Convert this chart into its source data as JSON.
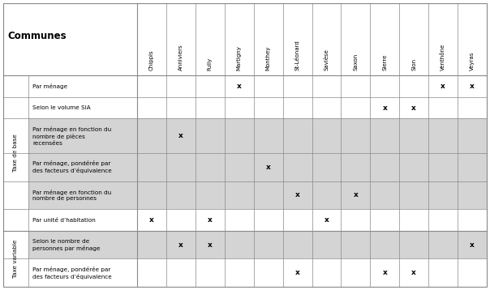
{
  "communes": [
    "Chippis",
    "Anniviers",
    "Fully",
    "Martigny",
    "Monthey",
    "St-Léonard",
    "Savièse",
    "Saxon",
    "Sierre",
    "Sion",
    "Venthône",
    "Veyras"
  ],
  "rows": [
    {
      "group": "Taxe de base",
      "label": "Par ménage",
      "label2": ""
    },
    {
      "group": "Taxe de base",
      "label": "Selon le volume SIA",
      "label2": ""
    },
    {
      "group": "Taxe de base",
      "label": "Par ménage en fonction du",
      "label2": "nombre de pièces\nrecensées"
    },
    {
      "group": "Taxe de base",
      "label": "Par ménage, pondérée par",
      "label2": "des facteurs d’équivalence"
    },
    {
      "group": "Taxe de base",
      "label": "Par ménage en fonction du",
      "label2": "nombre de personnes"
    },
    {
      "group": "Taxe de base",
      "label": "Par unité d’habitation",
      "label2": ""
    },
    {
      "group": "Taxe variable",
      "label": "Selon le nombre de",
      "label2": "personnes par ménage"
    },
    {
      "group": "Taxe variable",
      "label": "Par ménage, pondérée par",
      "label2": "des facteurs d’équivalence"
    }
  ],
  "marks": [
    [
      0,
      0,
      0,
      1,
      0,
      0,
      0,
      0,
      0,
      0,
      1,
      1
    ],
    [
      0,
      0,
      0,
      0,
      0,
      0,
      0,
      0,
      1,
      1,
      0,
      0
    ],
    [
      0,
      1,
      0,
      0,
      0,
      0,
      0,
      0,
      0,
      0,
      0,
      0
    ],
    [
      0,
      0,
      0,
      0,
      1,
      0,
      0,
      0,
      0,
      0,
      0,
      0
    ],
    [
      0,
      0,
      0,
      0,
      0,
      1,
      0,
      1,
      0,
      0,
      0,
      0
    ],
    [
      1,
      0,
      1,
      0,
      0,
      0,
      1,
      0,
      0,
      0,
      0,
      0
    ],
    [
      0,
      1,
      1,
      0,
      0,
      0,
      0,
      0,
      0,
      0,
      0,
      1
    ],
    [
      0,
      0,
      0,
      0,
      0,
      1,
      0,
      0,
      1,
      1,
      0,
      0
    ]
  ],
  "shaded_rows": [
    2,
    3,
    4,
    6
  ],
  "bg_color": "#ffffff",
  "shaded_color": "#d4d4d4",
  "border_color": "#888888",
  "text_color": "#000000",
  "mark_symbol": "x"
}
